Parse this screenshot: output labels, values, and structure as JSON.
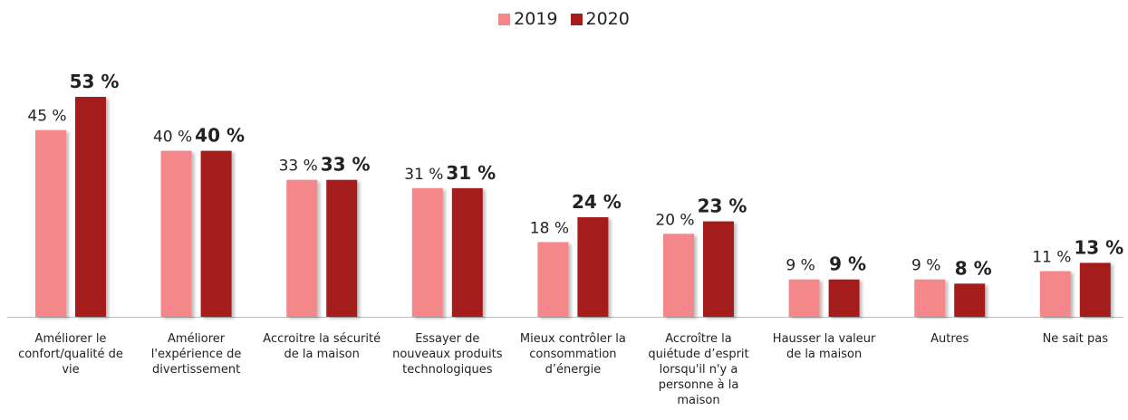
{
  "chart_data": {
    "type": "bar",
    "categories": [
      "Améliorer le confort/qualité de vie",
      "Améliorer l'expérience de divertissement",
      "Accroitre la sécurité de la maison",
      "Essayer de nouveaux produits technologiques",
      "Mieux contrôler la consommation d’énergie",
      "Accroître la quiétude d’esprit lorsqu'il n'y a personne à la maison",
      "Hausser la valeur de la maison",
      "Autres",
      "Ne sait pas"
    ],
    "series": [
      {
        "name": "2019",
        "color": "#f4878a",
        "values": [
          45,
          40,
          33,
          31,
          18,
          20,
          9,
          9,
          11
        ],
        "value_labels": [
          "45 %",
          "40 %",
          "33 %",
          "31 %",
          "18 %",
          "20 %",
          "9 %",
          "9 %",
          "11 %"
        ]
      },
      {
        "name": "2020",
        "color": "#a51c1f",
        "values": [
          53,
          40,
          33,
          31,
          24,
          23,
          9,
          8,
          13
        ],
        "value_labels": [
          "53 %",
          "40 %",
          "33 %",
          "31 %",
          "24 %",
          "23 %",
          "9 %",
          "8 %",
          "13 %"
        ]
      }
    ],
    "legend": "top"
  }
}
